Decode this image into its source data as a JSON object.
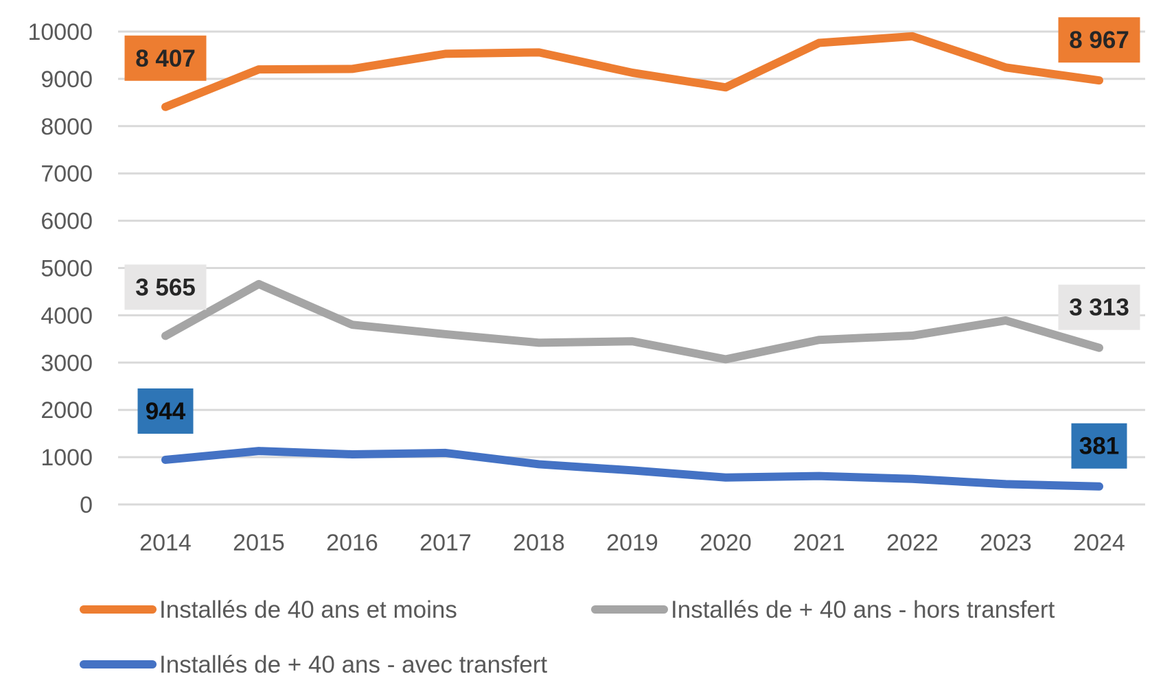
{
  "chart_data": {
    "type": "line",
    "title": "",
    "xlabel": "",
    "ylabel": "",
    "ylim": [
      0,
      10000
    ],
    "yticks": [
      0,
      1000,
      2000,
      3000,
      4000,
      5000,
      6000,
      7000,
      8000,
      9000,
      10000
    ],
    "grid": true,
    "legend_placement": "bottom",
    "categories": [
      "2014",
      "2015",
      "2016",
      "2017",
      "2018",
      "2019",
      "2020",
      "2021",
      "2022",
      "2023",
      "2024"
    ],
    "series": [
      {
        "name": "Installés de 40 ans et moins",
        "color": "#ED7D31",
        "values": [
          8407,
          9200,
          9210,
          9530,
          9560,
          9130,
          8820,
          9760,
          9900,
          9240,
          8967
        ],
        "labels": [
          {
            "index": 0,
            "text": "8 407"
          },
          {
            "index": 10,
            "text": "8 967"
          }
        ],
        "label_bg": "#ED7D31",
        "label_color": "#262626"
      },
      {
        "name": "Installés de + 40 ans - hors transfert",
        "color": "#A5A5A5",
        "values": [
          3565,
          4660,
          3800,
          3600,
          3420,
          3450,
          3070,
          3480,
          3570,
          3890,
          3313
        ],
        "labels": [
          {
            "index": 0,
            "text": "3 565"
          },
          {
            "index": 10,
            "text": "3 313"
          }
        ],
        "label_bg": "#E7E6E6",
        "label_color": "#262626"
      },
      {
        "name": "Installés de + 40 ans - avec transfert",
        "color": "#4472C4",
        "values": [
          944,
          1130,
          1060,
          1090,
          850,
          720,
          570,
          600,
          540,
          430,
          381
        ],
        "labels": [
          {
            "index": 0,
            "text": "944"
          },
          {
            "index": 10,
            "text": "381"
          }
        ],
        "label_bg": "#2E75B6",
        "label_color": "#0D0D0D"
      }
    ]
  }
}
